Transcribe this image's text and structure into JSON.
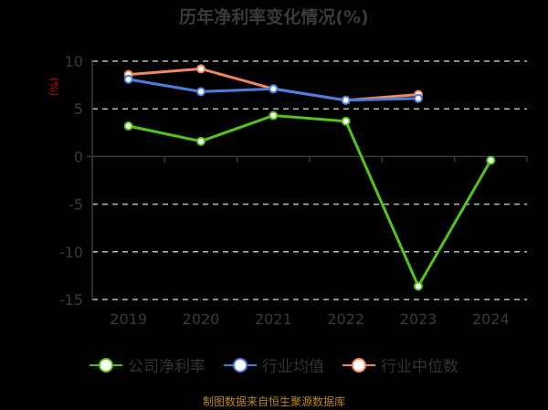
{
  "title": "历年净利率变化情况(%)",
  "source": "制图数据来自恒生聚源数据库",
  "chart_data": {
    "type": "line",
    "title": "历年净利率变化情况(%)",
    "xlabel": "",
    "ylabel": "(%)",
    "x": [
      "2019",
      "2020",
      "2021",
      "2022",
      "2023",
      "2024"
    ],
    "ylim": [
      -15,
      10
    ],
    "yticks": [
      10,
      5,
      0,
      -5,
      -10,
      -15
    ],
    "grid": true,
    "legend_position": "bottom",
    "series": [
      {
        "name": "公司净利率",
        "color": "#52c41a",
        "values": [
          3.2,
          1.6,
          4.3,
          3.7,
          -13.6,
          -0.4
        ]
      },
      {
        "name": "行业均值",
        "color": "#4a7fe0",
        "values": [
          8.1,
          6.8,
          7.1,
          5.9,
          6.1,
          null
        ]
      },
      {
        "name": "行业中位数",
        "color": "#f08a5d",
        "values": [
          8.6,
          9.2,
          7.1,
          5.9,
          6.5,
          null
        ]
      }
    ]
  },
  "colors": {
    "axis": "#3a3a3a",
    "grid": "#bbbbbb",
    "ylabel": "#cc0000",
    "source": "#b8862a"
  }
}
